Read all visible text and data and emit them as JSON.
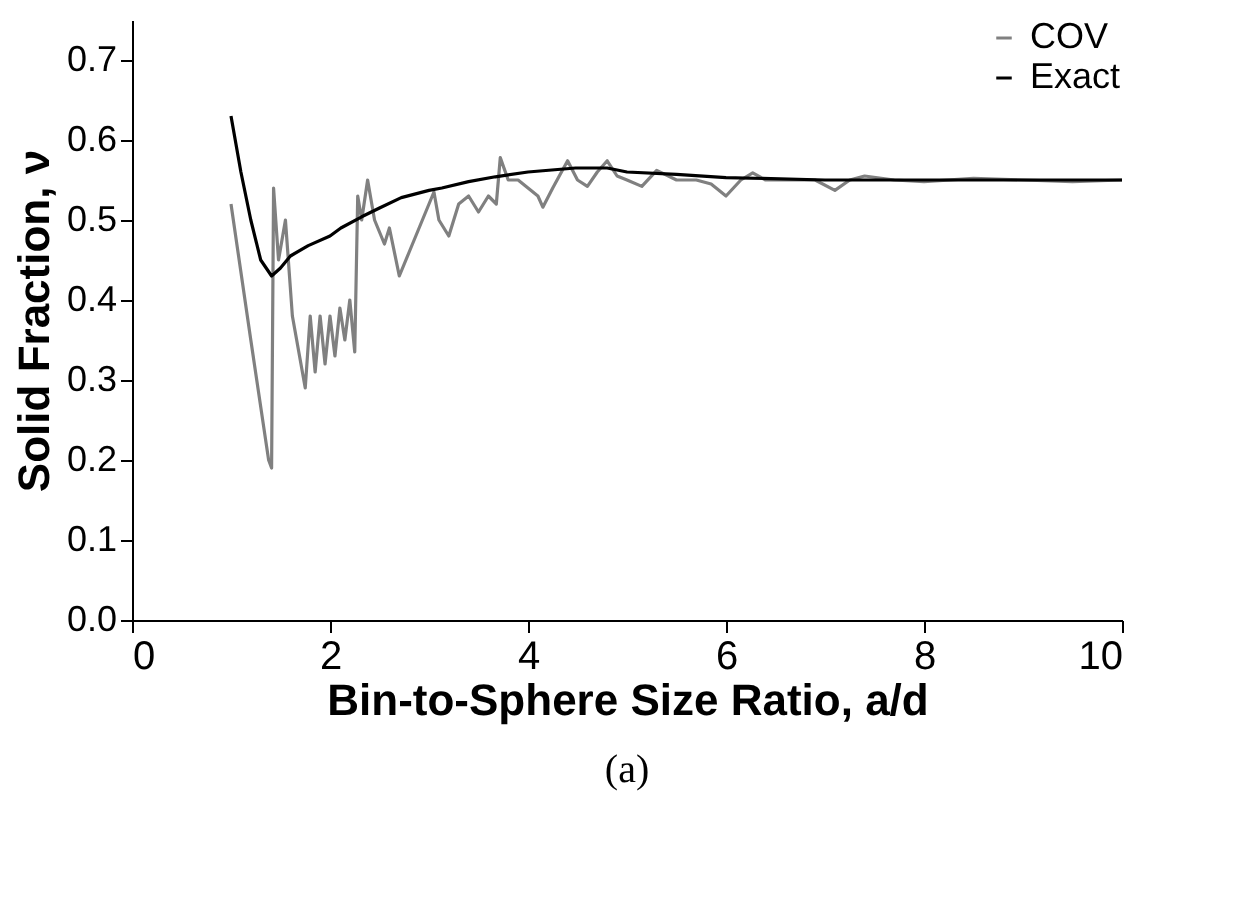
{
  "chart_data": {
    "type": "line",
    "xlabel": "Bin-to-Sphere Size Ratio, a/d",
    "ylabel": "Solid Fraction, ν",
    "annotations": [
      "(a)"
    ],
    "xlim": [
      0,
      10
    ],
    "xticks": [
      0,
      2,
      4,
      6,
      8,
      10
    ],
    "ylim": [
      0,
      0.75
    ],
    "yticks": [
      {
        "value": 0,
        "label": "0.0"
      },
      {
        "value": 0.1,
        "label": "0.1"
      },
      {
        "value": 0.2,
        "label": "0.2"
      },
      {
        "value": 0.3,
        "label": "0.3"
      },
      {
        "value": 0.4,
        "label": "0.4"
      },
      {
        "value": 0.5,
        "label": "0.5"
      },
      {
        "value": 0.6,
        "label": "0.6"
      },
      {
        "value": 0.7,
        "label": "0.7"
      }
    ],
    "grid": false,
    "legend": "top right",
    "marker": "none",
    "line_style": "solid",
    "series": [
      {
        "name": "COV",
        "color": "#808080",
        "x": [
          1.0,
          1.2,
          1.38,
          1.41,
          1.43,
          1.48,
          1.55,
          1.62,
          1.75,
          1.8,
          1.85,
          1.9,
          1.95,
          2.0,
          2.05,
          2.1,
          2.15,
          2.2,
          2.25,
          2.28,
          2.32,
          2.38,
          2.45,
          2.55,
          2.6,
          2.7,
          2.8,
          2.9,
          3.0,
          3.05,
          3.1,
          3.2,
          3.3,
          3.4,
          3.5,
          3.6,
          3.68,
          3.72,
          3.8,
          3.9,
          4.0,
          4.1,
          4.15,
          4.25,
          4.4,
          4.5,
          4.6,
          4.7,
          4.8,
          4.9,
          5.0,
          5.15,
          5.3,
          5.5,
          5.7,
          5.85,
          6.0,
          6.15,
          6.27,
          6.4,
          6.7,
          6.9,
          7.1,
          7.25,
          7.4,
          7.7,
          8.0,
          8.5,
          9.0,
          9.5,
          10.0
        ],
        "values": [
          0.52,
          0.35,
          0.2,
          0.19,
          0.54,
          0.45,
          0.5,
          0.38,
          0.29,
          0.38,
          0.31,
          0.38,
          0.32,
          0.38,
          0.33,
          0.39,
          0.35,
          0.4,
          0.335,
          0.53,
          0.5,
          0.55,
          0.5,
          0.47,
          0.49,
          0.43,
          0.46,
          0.49,
          0.52,
          0.535,
          0.5,
          0.48,
          0.52,
          0.53,
          0.51,
          0.53,
          0.52,
          0.578,
          0.55,
          0.55,
          0.54,
          0.53,
          0.516,
          0.54,
          0.574,
          0.55,
          0.542,
          0.56,
          0.574,
          0.555,
          0.55,
          0.542,
          0.562,
          0.55,
          0.55,
          0.545,
          0.53,
          0.55,
          0.559,
          0.55,
          0.55,
          0.55,
          0.537,
          0.55,
          0.555,
          0.55,
          0.548,
          0.552,
          0.55,
          0.548,
          0.55
        ]
      },
      {
        "name": "Exact",
        "color": "#000000",
        "x": [
          1.0,
          1.1,
          1.2,
          1.3,
          1.41,
          1.5,
          1.6,
          1.78,
          2.0,
          2.11,
          2.32,
          2.5,
          2.72,
          3.0,
          3.13,
          3.4,
          3.67,
          4.0,
          4.48,
          4.8,
          5.0,
          5.5,
          6.0,
          7.0,
          8.0,
          10.0
        ],
        "values": [
          0.63,
          0.56,
          0.5,
          0.45,
          0.43,
          0.44,
          0.455,
          0.468,
          0.48,
          0.49,
          0.504,
          0.515,
          0.528,
          0.537,
          0.54,
          0.548,
          0.554,
          0.56,
          0.565,
          0.565,
          0.56,
          0.557,
          0.553,
          0.55,
          0.55,
          0.55
        ]
      }
    ]
  }
}
